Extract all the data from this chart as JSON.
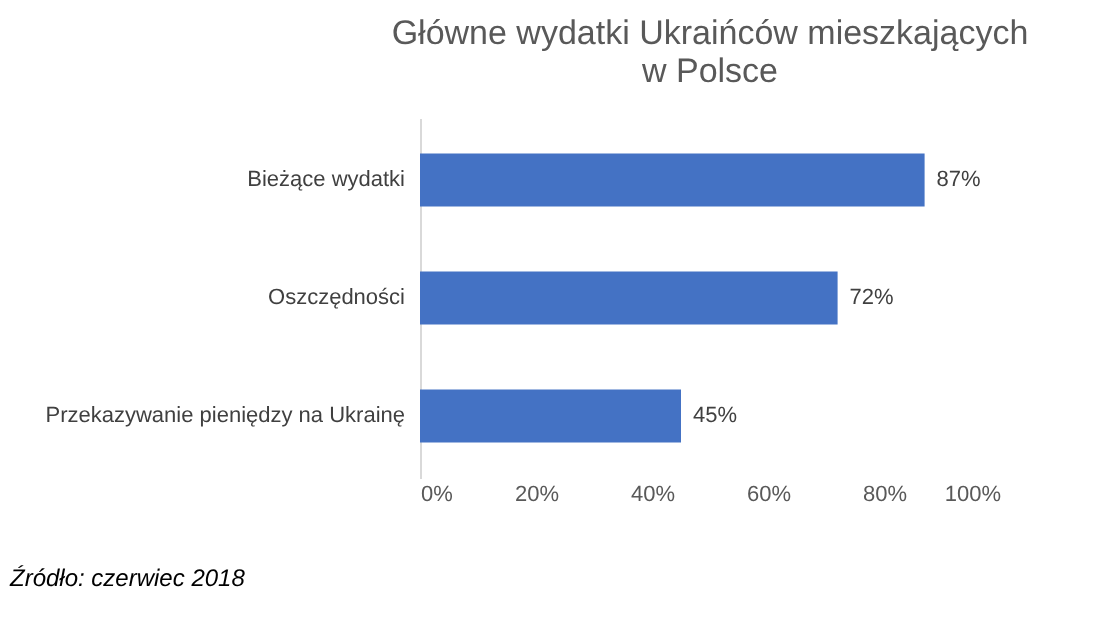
{
  "chart_data": {
    "type": "bar",
    "orientation": "horizontal",
    "title": [
      "Główne wydatki Ukraińców mieszkających",
      "w Polsce"
    ],
    "categories": [
      "Bieżące wydatki",
      "Oszczędności",
      "Przekazywanie pieniędzy na Ukrainę"
    ],
    "values": [
      87,
      72,
      45
    ],
    "value_labels": [
      "87%",
      "72%",
      "45%"
    ],
    "color": "#4472c4",
    "xlim": [
      0,
      100
    ],
    "xticks": [
      {
        "value": 0,
        "label": "0%"
      },
      {
        "value": 20,
        "label": "20%"
      },
      {
        "value": 40,
        "label": "40%"
      },
      {
        "value": 60,
        "label": "60%"
      },
      {
        "value": 80,
        "label": "80%"
      },
      {
        "value": 100,
        "label": "100%"
      }
    ],
    "grid": false,
    "annotations": [
      "Źródło: czerwiec 2018"
    ]
  }
}
